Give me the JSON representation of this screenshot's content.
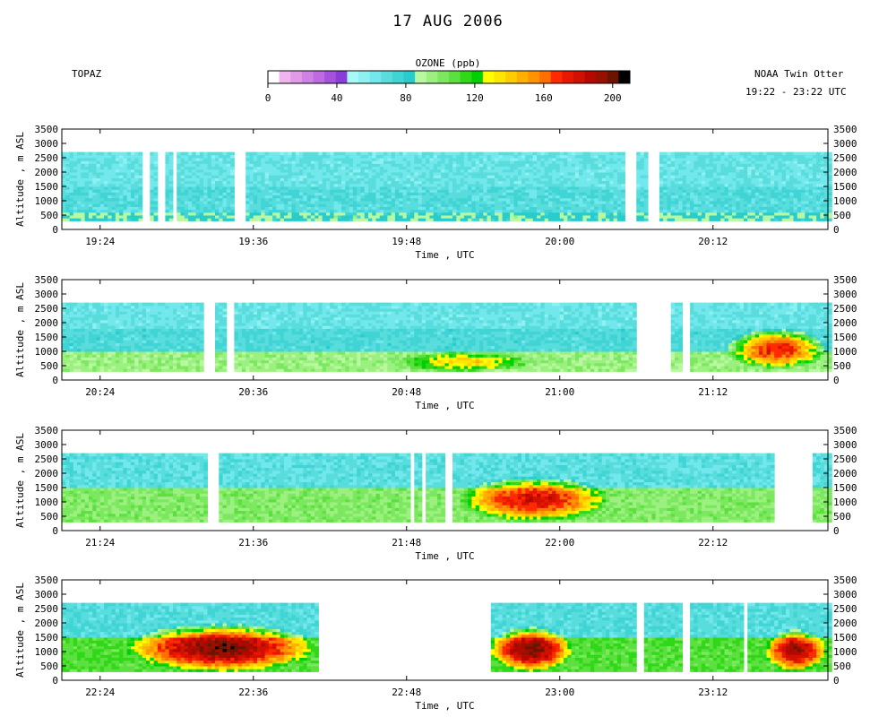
{
  "header": {
    "title": "17 AUG 2006",
    "instrument": "TOPAZ",
    "platform": "NOAA Twin Otter",
    "time_span": "19:22 - 23:22 UTC"
  },
  "colorbar": {
    "title": "OZONE (ppb)",
    "range": [
      0,
      210
    ],
    "tick_values": [
      0,
      40,
      80,
      120,
      160,
      200
    ],
    "tick_labels": [
      "0",
      "40",
      "80",
      "120",
      "160",
      "200"
    ],
    "colors": [
      "#ffffff",
      "#f0b4f0",
      "#e09ae8",
      "#d082e4",
      "#bf6ae0",
      "#a652dc",
      "#8a3cd8",
      "#a8f8f8",
      "#8ef0f0",
      "#72e8ec",
      "#58dcdc",
      "#40d4d4",
      "#28cccc",
      "#b8f8a0",
      "#9cf080",
      "#7ce860",
      "#5ce040",
      "#30d818",
      "#00d000",
      "#ffff00",
      "#ffe600",
      "#ffcc00",
      "#ffb000",
      "#ff9400",
      "#ff7000",
      "#ff2a00",
      "#e81800",
      "#d01000",
      "#b40800",
      "#981000",
      "#6c1400",
      "#000000"
    ]
  },
  "chart_data": [
    {
      "type": "heatmap",
      "title": "",
      "xlabel": "Time , UTC",
      "ylabel": "Altitude , m ASL",
      "x_ticks": [
        "19:24",
        "19:36",
        "19:48",
        "20:00",
        "20:12"
      ],
      "x_tick_minutes": [
        1164,
        1176,
        1188,
        1200,
        1212
      ],
      "xlim_minutes": [
        1161,
        1221
      ],
      "ylim": [
        0,
        3500
      ],
      "y_ticks": [
        0,
        500,
        1000,
        1500,
        2000,
        2500,
        3000,
        3500
      ],
      "profiles_top_m": 2700,
      "data_gaps_minutes": [
        [
          1167.3,
          1167.9
        ],
        [
          1168.6,
          1169.1
        ],
        [
          1169.6,
          1170.0
        ],
        [
          1174.5,
          1175.3
        ],
        [
          1205.2,
          1206.0
        ],
        [
          1206.9,
          1207.8
        ]
      ],
      "ozone_ppb_by_altitude": [
        {
          "altitude_range_m": [
            300,
            600
          ],
          "ozone_ppb": 85
        },
        {
          "altitude_range_m": [
            600,
            1500
          ],
          "ozone_ppb": 70
        },
        {
          "altitude_range_m": [
            1500,
            2700
          ],
          "ozone_ppb": 65
        }
      ]
    },
    {
      "type": "heatmap",
      "title": "",
      "xlabel": "Time , UTC",
      "ylabel": "Altitude , m ASL",
      "x_ticks": [
        "20:24",
        "20:36",
        "20:48",
        "21:00",
        "21:12"
      ],
      "x_tick_minutes": [
        1224,
        1236,
        1248,
        1260,
        1272
      ],
      "xlim_minutes": [
        1221,
        1281
      ],
      "ylim": [
        0,
        3500
      ],
      "y_ticks": [
        0,
        500,
        1000,
        1500,
        2000,
        2500,
        3000,
        3500
      ],
      "profiles_top_m": 2700,
      "data_gaps_minutes": [
        [
          1232.1,
          1233.1
        ],
        [
          1233.9,
          1234.4
        ],
        [
          1265.9,
          1268.6
        ],
        [
          1269.6,
          1270.2
        ]
      ],
      "ozone_ppb_by_altitude": [
        {
          "altitude_range_m": [
            300,
            1000
          ],
          "ozone_ppb": 95
        },
        {
          "altitude_range_m": [
            1000,
            1800
          ],
          "ozone_ppb": 72
        },
        {
          "altitude_range_m": [
            1800,
            2700
          ],
          "ozone_ppb": 65
        }
      ],
      "peak_ozone_ppb": 175
    },
    {
      "type": "heatmap",
      "title": "",
      "xlabel": "Time , UTC",
      "ylabel": "Altitude , m ASL",
      "x_ticks": [
        "21:24",
        "21:36",
        "21:48",
        "22:00",
        "22:12"
      ],
      "x_tick_minutes": [
        1284,
        1296,
        1308,
        1320,
        1332
      ],
      "xlim_minutes": [
        1281,
        1341
      ],
      "ylim": [
        0,
        3500
      ],
      "y_ticks": [
        0,
        500,
        1000,
        1500,
        2000,
        2500,
        3000,
        3500
      ],
      "profiles_top_m": 2700,
      "data_gaps_minutes": [
        [
          1292.4,
          1293.3
        ],
        [
          1308.4,
          1308.7
        ],
        [
          1309.1,
          1309.5
        ],
        [
          1311.0,
          1311.5
        ],
        [
          1336.7,
          1339.9
        ]
      ],
      "ozone_ppb_by_altitude": [
        {
          "altitude_range_m": [
            300,
            1500
          ],
          "ozone_ppb": 100
        },
        {
          "altitude_range_m": [
            1500,
            2700
          ],
          "ozone_ppb": 68
        }
      ],
      "peak_ozone_ppb": 180
    },
    {
      "type": "heatmap",
      "title": "",
      "xlabel": "Time , UTC",
      "ylabel": "Altitude , m ASL",
      "x_ticks": [
        "22:24",
        "22:36",
        "22:48",
        "23:00",
        "23:12"
      ],
      "x_tick_minutes": [
        1344,
        1356,
        1368,
        1380,
        1392
      ],
      "xlim_minutes": [
        1341,
        1401
      ],
      "ylim": [
        0,
        3500
      ],
      "y_ticks": [
        0,
        500,
        1000,
        1500,
        2000,
        2500,
        3000,
        3500
      ],
      "profiles_top_m": 2700,
      "data_gaps_minutes": [
        [
          1361.2,
          1374.5
        ],
        [
          1386.1,
          1386.7
        ],
        [
          1389.6,
          1390.2
        ],
        [
          1394.4,
          1394.8
        ]
      ],
      "ozone_ppb_by_altitude": [
        {
          "altitude_range_m": [
            300,
            1500
          ],
          "ozone_ppb": 110
        },
        {
          "altitude_range_m": [
            1500,
            2700
          ],
          "ozone_ppb": 70
        }
      ],
      "peak_ozone_ppb": 200
    }
  ]
}
